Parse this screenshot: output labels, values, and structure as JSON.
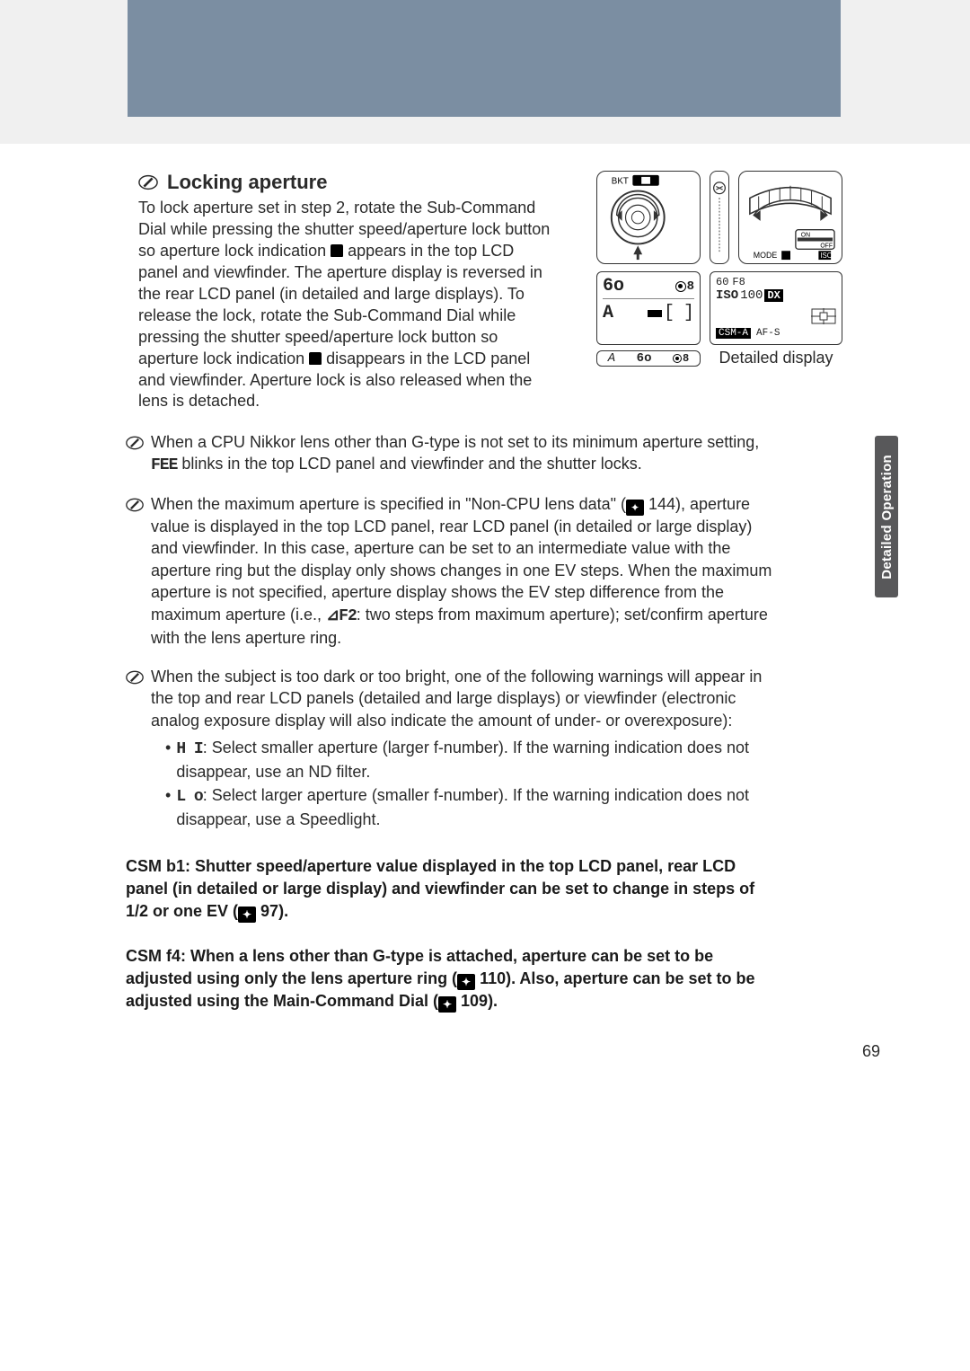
{
  "page_number": "69",
  "sidebar_tab": "Detailed Operation",
  "section": {
    "heading": "Locking aperture",
    "body_html": "To lock aperture set in step 2, rotate the Sub-Command Dial while pressing the shutter speed/aperture lock button so aperture lock indication {LOCK} appears in the top LCD panel and viewfinder. The aperture display is reversed in the rear LCD panel (in detailed and large displays). To release the lock, rotate the Sub-Command Dial while pressing the shutter speed/aperture lock button so aperture lock indication {LOCK} disappears in the LCD panel and viewfinder. Aperture lock is also released when the lens is detached."
  },
  "figures": {
    "rear_panel": {
      "r1_left": "6o",
      "r1_right_icon": "spot-meter-lock",
      "r2_left": "A",
      "r2_mid": "[",
      "r2_right": "]"
    },
    "top_panel": {
      "shutter": "60",
      "f_label": "F8",
      "iso_label": "ISO",
      "iso_value": "100",
      "dx": "DX",
      "csm": "CSM-A",
      "af": "AF-S"
    },
    "strip": {
      "a": "A",
      "b": "6o",
      "icon": "spot-meter-lock"
    },
    "caption": "Detailed display",
    "bkt_label": "BKT",
    "mode_label": "MODE"
  },
  "notes": [
    {
      "html": "When a CPU Nikkor lens other than G-type is not set to its minimum aperture setting, {FEE} blinks in the top LCD panel and viewfinder and the shutter locks."
    },
    {
      "html": "When the maximum aperture is specified in \"Non-CPU lens data\" ({PG} 144), aperture value is displayed in the top LCD panel, rear LCD panel (in detailed or large display) and viewfinder. In this case, aperture can be set to an intermediate value with the aperture ring but the display only shows changes in one EV steps. When the maximum aperture is not specified, aperture display shows the EV step difference from the maximum aperture (i.e., {DF2}: two steps from maximum aperture); set/confirm aperture with the lens aperture ring."
    },
    {
      "html": "When the subject is too dark or too bright, one of the following warnings will appear in the top and rear LCD panels (detailed and large displays) or viewfinder (electronic analog exposure display will also indicate the amount of under- or overexposure):",
      "bullets": [
        {
          "glyph": "H I",
          "text": ": Select smaller aperture (larger f-number). If the warning indication does not disappear, use an ND filter."
        },
        {
          "glyph": "L o",
          "text": ": Select larger aperture (smaller f-number). If the warning indication does not disappear, use a Speedlight."
        }
      ]
    }
  ],
  "csm": [
    {
      "label": "CSM b1:",
      "text": " Shutter speed/aperture value displayed in the top LCD panel, rear LCD panel (in detailed or large display) and viewfinder can be set to change in steps of 1/2 or one EV ({PG} 97)."
    },
    {
      "label": "CSM f4:",
      "text": " When a lens other than G-type is attached, aperture can be set to be adjusted using only the lens aperture ring ({PG} 110). Also, aperture can be set to be adjusted using the Main-Command Dial ({PG} 109)."
    }
  ],
  "icons": {
    "pencil_color": "#2a2a2a",
    "accent": "#58585a"
  }
}
